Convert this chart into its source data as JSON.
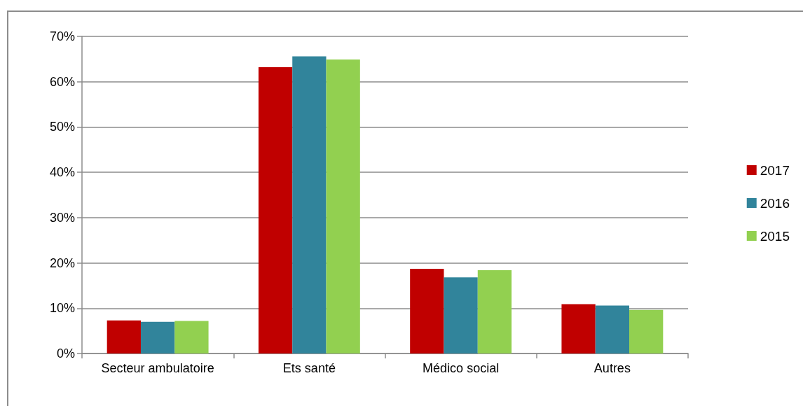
{
  "chart_data": {
    "type": "bar",
    "categories": [
      "Secteur ambulatoire",
      "Ets santé",
      "Médico social",
      "Autres"
    ],
    "series": [
      {
        "name": "2017",
        "color": "#c00000",
        "values": [
          7.3,
          63.2,
          18.7,
          10.9
        ]
      },
      {
        "name": "2016",
        "color": "#31849b",
        "values": [
          7.0,
          65.6,
          16.8,
          10.6
        ]
      },
      {
        "name": "2015",
        "color": "#92d050",
        "values": [
          7.2,
          64.9,
          18.4,
          9.6
        ]
      }
    ],
    "ylim": [
      0,
      70
    ],
    "yticks": [
      {
        "value": 0,
        "label": "0%"
      },
      {
        "value": 10,
        "label": "10%"
      },
      {
        "value": 20,
        "label": "20%"
      },
      {
        "value": 30,
        "label": "30%"
      },
      {
        "value": 40,
        "label": "40%"
      },
      {
        "value": 50,
        "label": "50%"
      },
      {
        "value": 60,
        "label": "60%"
      },
      {
        "value": 70,
        "label": "70%"
      }
    ],
    "grid": "y",
    "legend": "right"
  }
}
